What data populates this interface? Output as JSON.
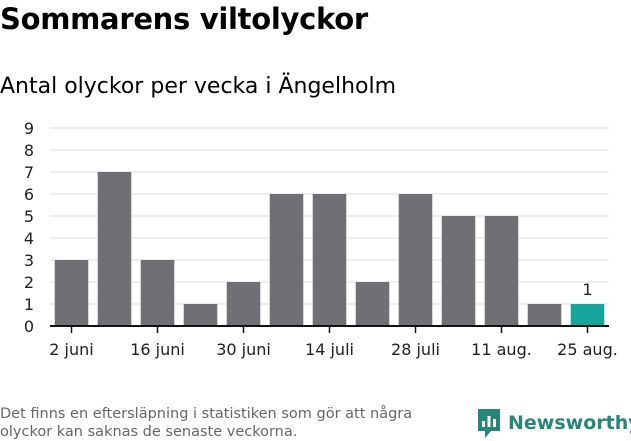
{
  "header": {
    "title": "Sommarens viltolyckor",
    "subtitle": "Antal olyckor per vecka i Ängelholm"
  },
  "footer": {
    "note": "Det finns en eftersläpning i statistiken som gör att några olyckor kan saknas de senaste veckorna.",
    "brand": "Newsworthy"
  },
  "colors": {
    "bar": "#707074",
    "highlight": "#14a69a",
    "grid": "#dddddd",
    "axis": "#111111",
    "brand": "#27857a"
  },
  "chart_data": {
    "type": "bar",
    "title": "Antal olyckor per vecka i Ängelholm",
    "xlabel": "",
    "ylabel": "",
    "ylim": [
      0,
      9
    ],
    "yticks": [
      "0",
      "1",
      "2",
      "3",
      "4",
      "5",
      "6",
      "7",
      "8",
      "9"
    ],
    "grid": true,
    "values": [
      3,
      7,
      3,
      1,
      2,
      6,
      6,
      2,
      6,
      5,
      5,
      1,
      1
    ],
    "xtick_labels": [
      {
        "index": 0.5,
        "label": "2 juni"
      },
      {
        "index": 2.5,
        "label": "16 juni"
      },
      {
        "index": 4.5,
        "label": "30 juni"
      },
      {
        "index": 6.5,
        "label": "14 juli"
      },
      {
        "index": 8.5,
        "label": "28 juli"
      },
      {
        "index": 10.5,
        "label": "11 aug."
      },
      {
        "index": 12.5,
        "label": "25 aug."
      }
    ],
    "highlight_index": 12,
    "highlight_label": "1"
  }
}
